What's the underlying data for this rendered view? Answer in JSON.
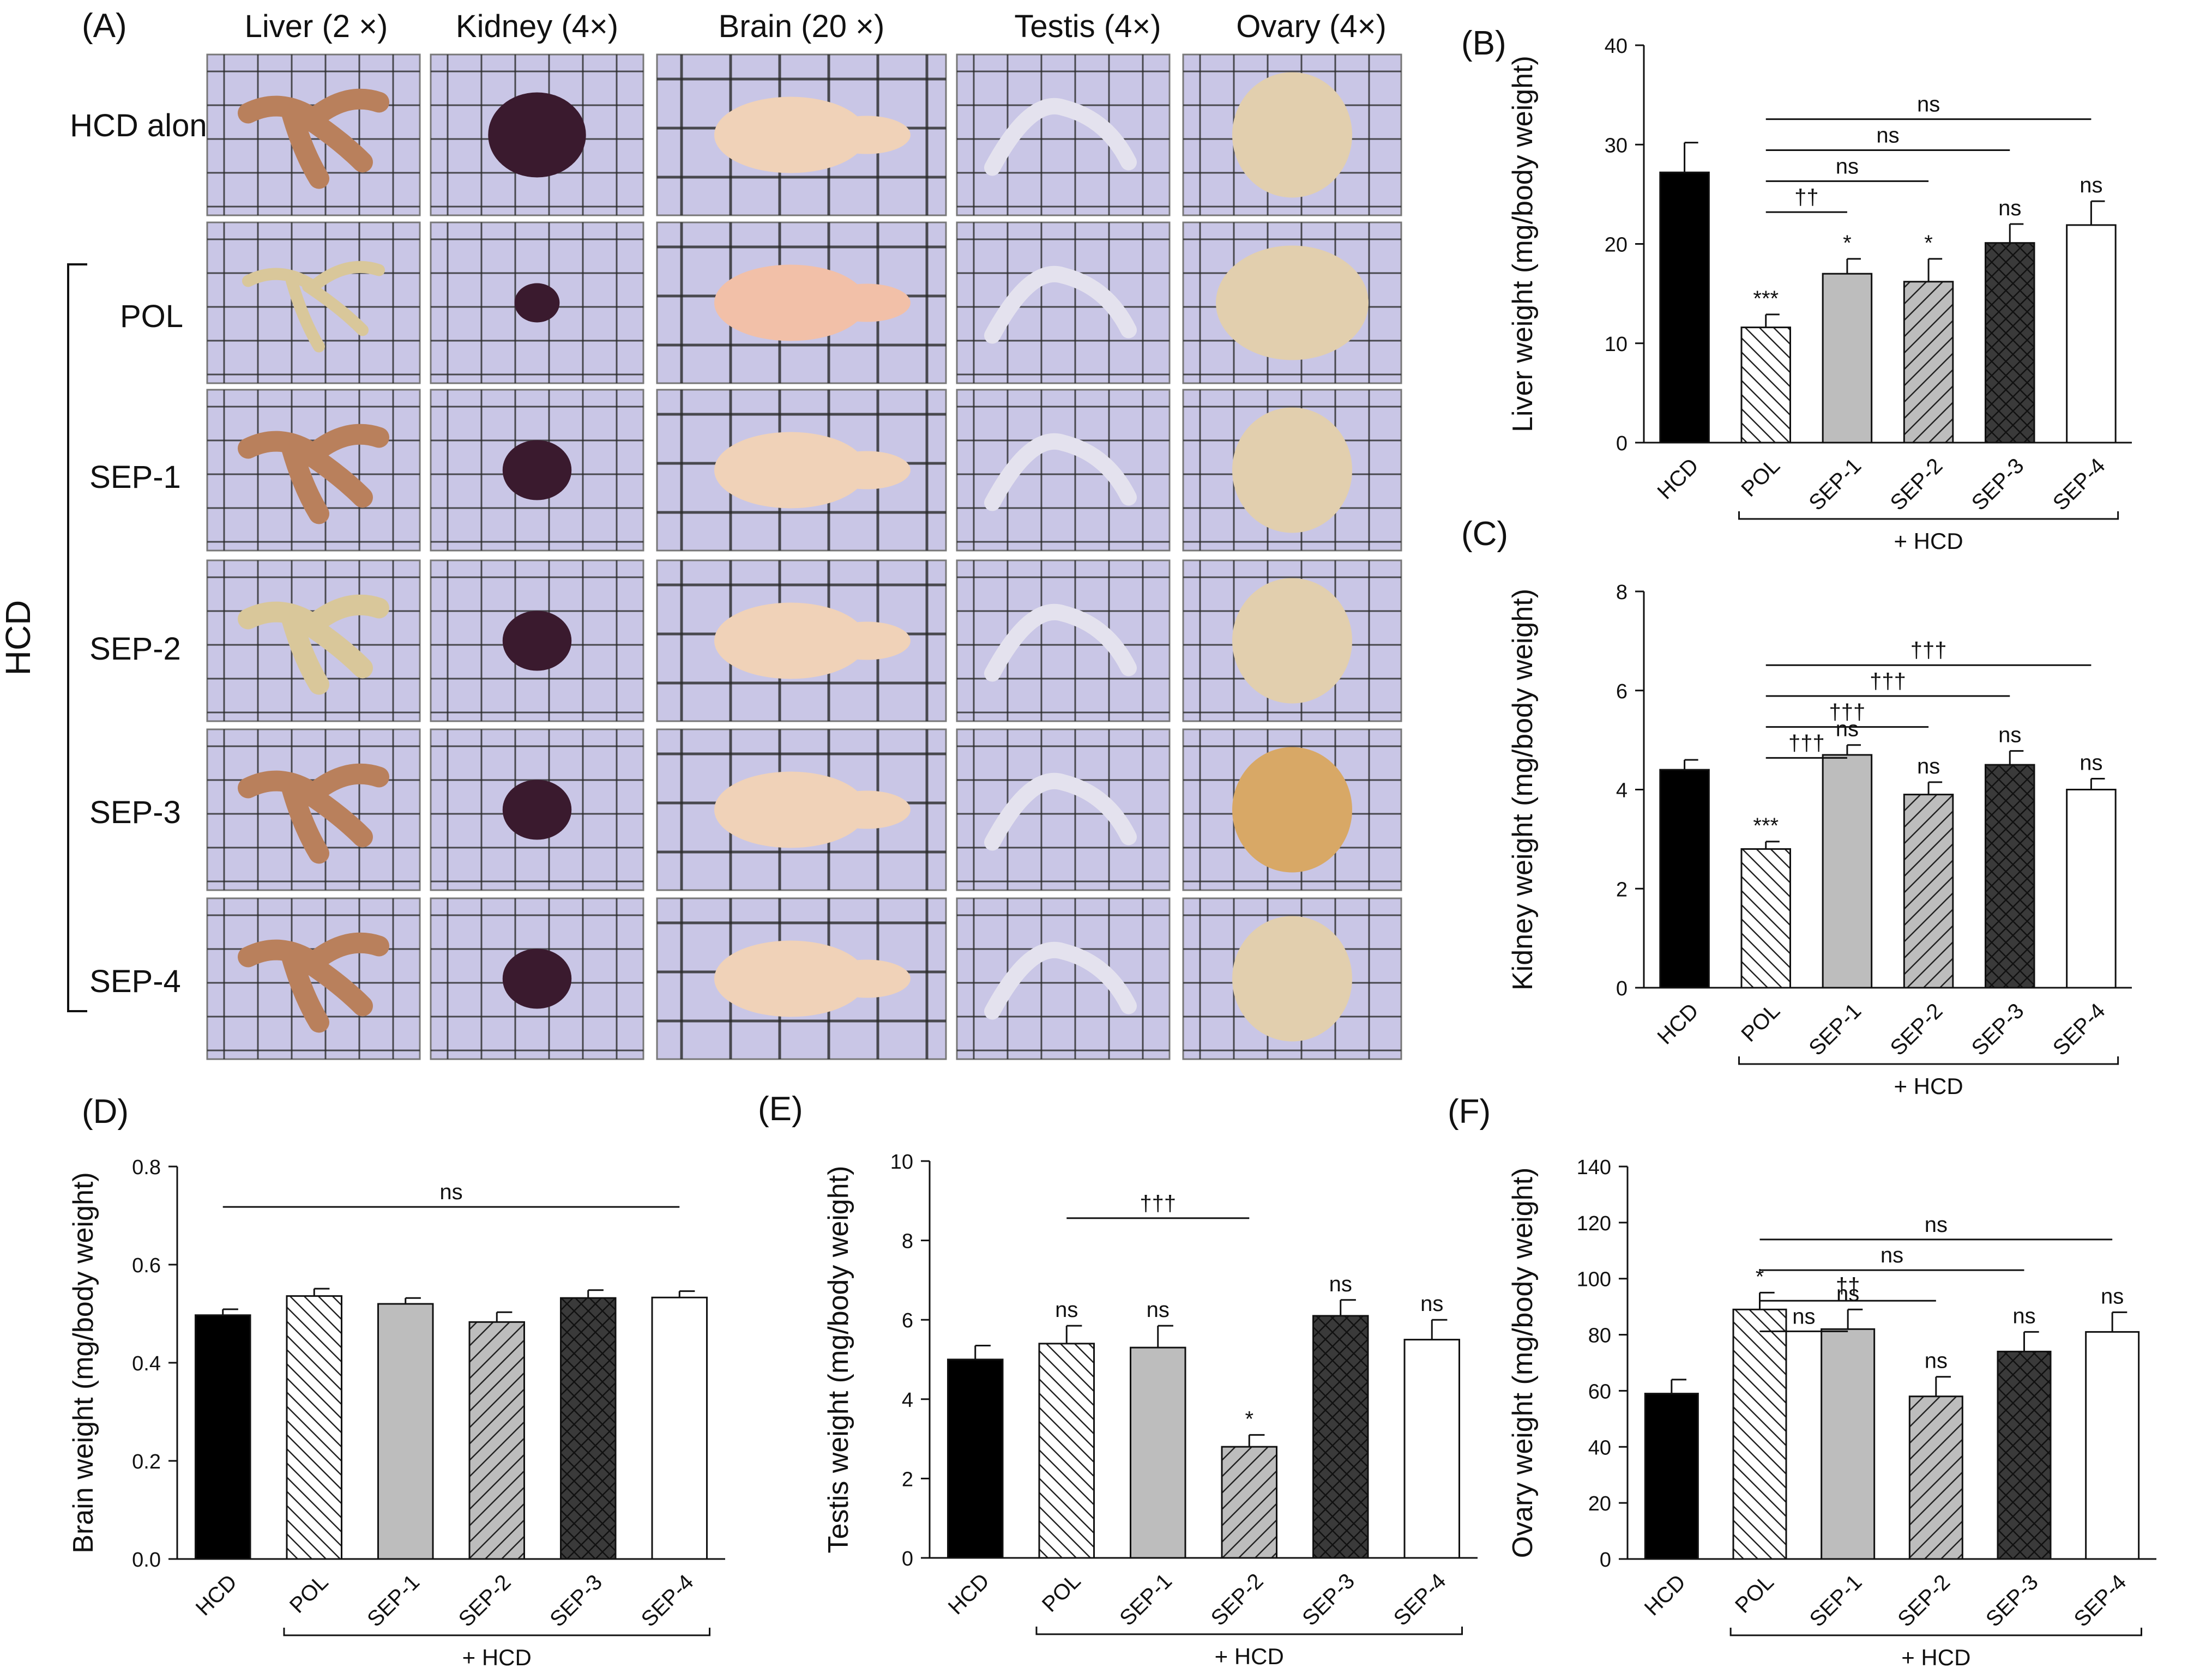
{
  "figure": {
    "panel_a": {
      "label": "(A)",
      "columns": [
        "Liver (2 ×)",
        "Kidney (4×)",
        "Brain (20 ×)",
        "Testis (4×)",
        "Ovary (4×)"
      ],
      "rows": [
        "HCD alone",
        "POL",
        "SEP-1",
        "SEP-2",
        "SEP-3",
        "SEP-4"
      ],
      "group_label": "HCD",
      "colors": {
        "grid_bg": "#c9c6e6",
        "liver": "#b9805c",
        "kidney": "#3a1a2e",
        "brain": "#f0d2b8",
        "testis": "#e4e2ee",
        "ovary": "#e2cfae"
      }
    }
  },
  "chart_data": [
    {
      "type": "bar",
      "id": "B",
      "label": "(B)",
      "ylabel": "Liver weight (mg/body weight)",
      "categories": [
        "HCD",
        "POL",
        "SEP-1",
        "SEP-2",
        "SEP-3",
        "SEP-4"
      ],
      "values": [
        27.2,
        11.6,
        17.0,
        16.2,
        20.1,
        21.9
      ],
      "errors": [
        3.0,
        1.3,
        1.5,
        2.3,
        1.9,
        2.4
      ],
      "ylim": [
        0,
        40
      ],
      "yticks": [
        "0",
        "10",
        "20",
        "30",
        "40"
      ],
      "bar_labels": [
        "",
        "***",
        "*",
        "*",
        "ns",
        "ns"
      ],
      "brackets": [
        {
          "from": 1,
          "to": 2,
          "label": "††"
        },
        {
          "from": 1,
          "to": 3,
          "label": "ns"
        },
        {
          "from": 1,
          "to": 4,
          "label": "ns"
        },
        {
          "from": 1,
          "to": 5,
          "label": "ns"
        }
      ],
      "group_label": "+ HCD",
      "group_from": 1,
      "group_to": 5
    },
    {
      "type": "bar",
      "id": "C",
      "label": "(C)",
      "ylabel": "Kidney weight (mg/body weight)",
      "categories": [
        "HCD",
        "POL",
        "SEP-1",
        "SEP-2",
        "SEP-3",
        "SEP-4"
      ],
      "values": [
        4.4,
        2.8,
        4.7,
        3.9,
        4.5,
        4.0
      ],
      "errors": [
        0.2,
        0.15,
        0.2,
        0.25,
        0.28,
        0.22
      ],
      "ylim": [
        0,
        8
      ],
      "yticks": [
        "0",
        "2",
        "4",
        "6",
        "8"
      ],
      "bar_labels": [
        "",
        "***",
        "ns",
        "ns",
        "ns",
        "ns"
      ],
      "brackets": [
        {
          "from": 1,
          "to": 2,
          "label": "†††"
        },
        {
          "from": 1,
          "to": 3,
          "label": "†††"
        },
        {
          "from": 1,
          "to": 4,
          "label": "†††"
        },
        {
          "from": 1,
          "to": 5,
          "label": "†††"
        }
      ],
      "group_label": "+ HCD",
      "group_from": 1,
      "group_to": 5
    },
    {
      "type": "bar",
      "id": "D",
      "label": "(D)",
      "ylabel": "Brain weight (mg/body weight)",
      "categories": [
        "HCD",
        "POL",
        "SEP-1",
        "SEP-2",
        "SEP-3",
        "SEP-4"
      ],
      "values": [
        0.497,
        0.536,
        0.52,
        0.483,
        0.532,
        0.533
      ],
      "errors": [
        0.012,
        0.015,
        0.012,
        0.02,
        0.016,
        0.013
      ],
      "ylim": [
        0,
        0.8
      ],
      "yticks": [
        "0.0",
        "0.2",
        "0.4",
        "0.6",
        "0.8"
      ],
      "bar_labels": [
        "",
        "",
        "",
        "",
        "",
        ""
      ],
      "brackets": [
        {
          "from": 0,
          "to": 5,
          "label": "ns"
        }
      ],
      "group_label": "+ HCD",
      "group_from": 1,
      "group_to": 5
    },
    {
      "type": "bar",
      "id": "E",
      "label": "(E)",
      "ylabel": "Testis weight (mg/body weight)",
      "categories": [
        "HCD",
        "POL",
        "SEP-1",
        "SEP-2",
        "SEP-3",
        "SEP-4"
      ],
      "values": [
        5.0,
        5.4,
        5.3,
        2.8,
        6.1,
        5.5
      ],
      "errors": [
        0.35,
        0.45,
        0.55,
        0.3,
        0.4,
        0.5
      ],
      "ylim": [
        0,
        10
      ],
      "yticks": [
        "0",
        "2",
        "4",
        "6",
        "8",
        "10"
      ],
      "bar_labels": [
        "",
        "ns",
        "ns",
        "*",
        "ns",
        "ns"
      ],
      "brackets": [
        {
          "from": 1,
          "to": 3,
          "label": "†††"
        }
      ],
      "group_label": "+ HCD",
      "group_from": 1,
      "group_to": 5
    },
    {
      "type": "bar",
      "id": "F",
      "label": "(F)",
      "ylabel": "Ovary weight (mg/body weight)",
      "categories": [
        "HCD",
        "POL",
        "SEP-1",
        "SEP-2",
        "SEP-3",
        "SEP-4"
      ],
      "values": [
        59,
        89,
        82,
        58,
        74,
        81
      ],
      "errors": [
        5,
        6,
        7,
        7,
        7,
        7
      ],
      "ylim": [
        0,
        140
      ],
      "yticks": [
        "0",
        "20",
        "40",
        "60",
        "80",
        "100",
        "120",
        "140"
      ],
      "bar_labels": [
        "",
        "*",
        "ns",
        "ns",
        "ns",
        "ns"
      ],
      "brackets": [
        {
          "from": 1,
          "to": 2,
          "label": "ns"
        },
        {
          "from": 1,
          "to": 3,
          "label": "††"
        },
        {
          "from": 1,
          "to": 4,
          "label": "ns"
        },
        {
          "from": 1,
          "to": 5,
          "label": "ns"
        }
      ],
      "group_label": "+ HCD",
      "group_from": 1,
      "group_to": 5
    }
  ]
}
